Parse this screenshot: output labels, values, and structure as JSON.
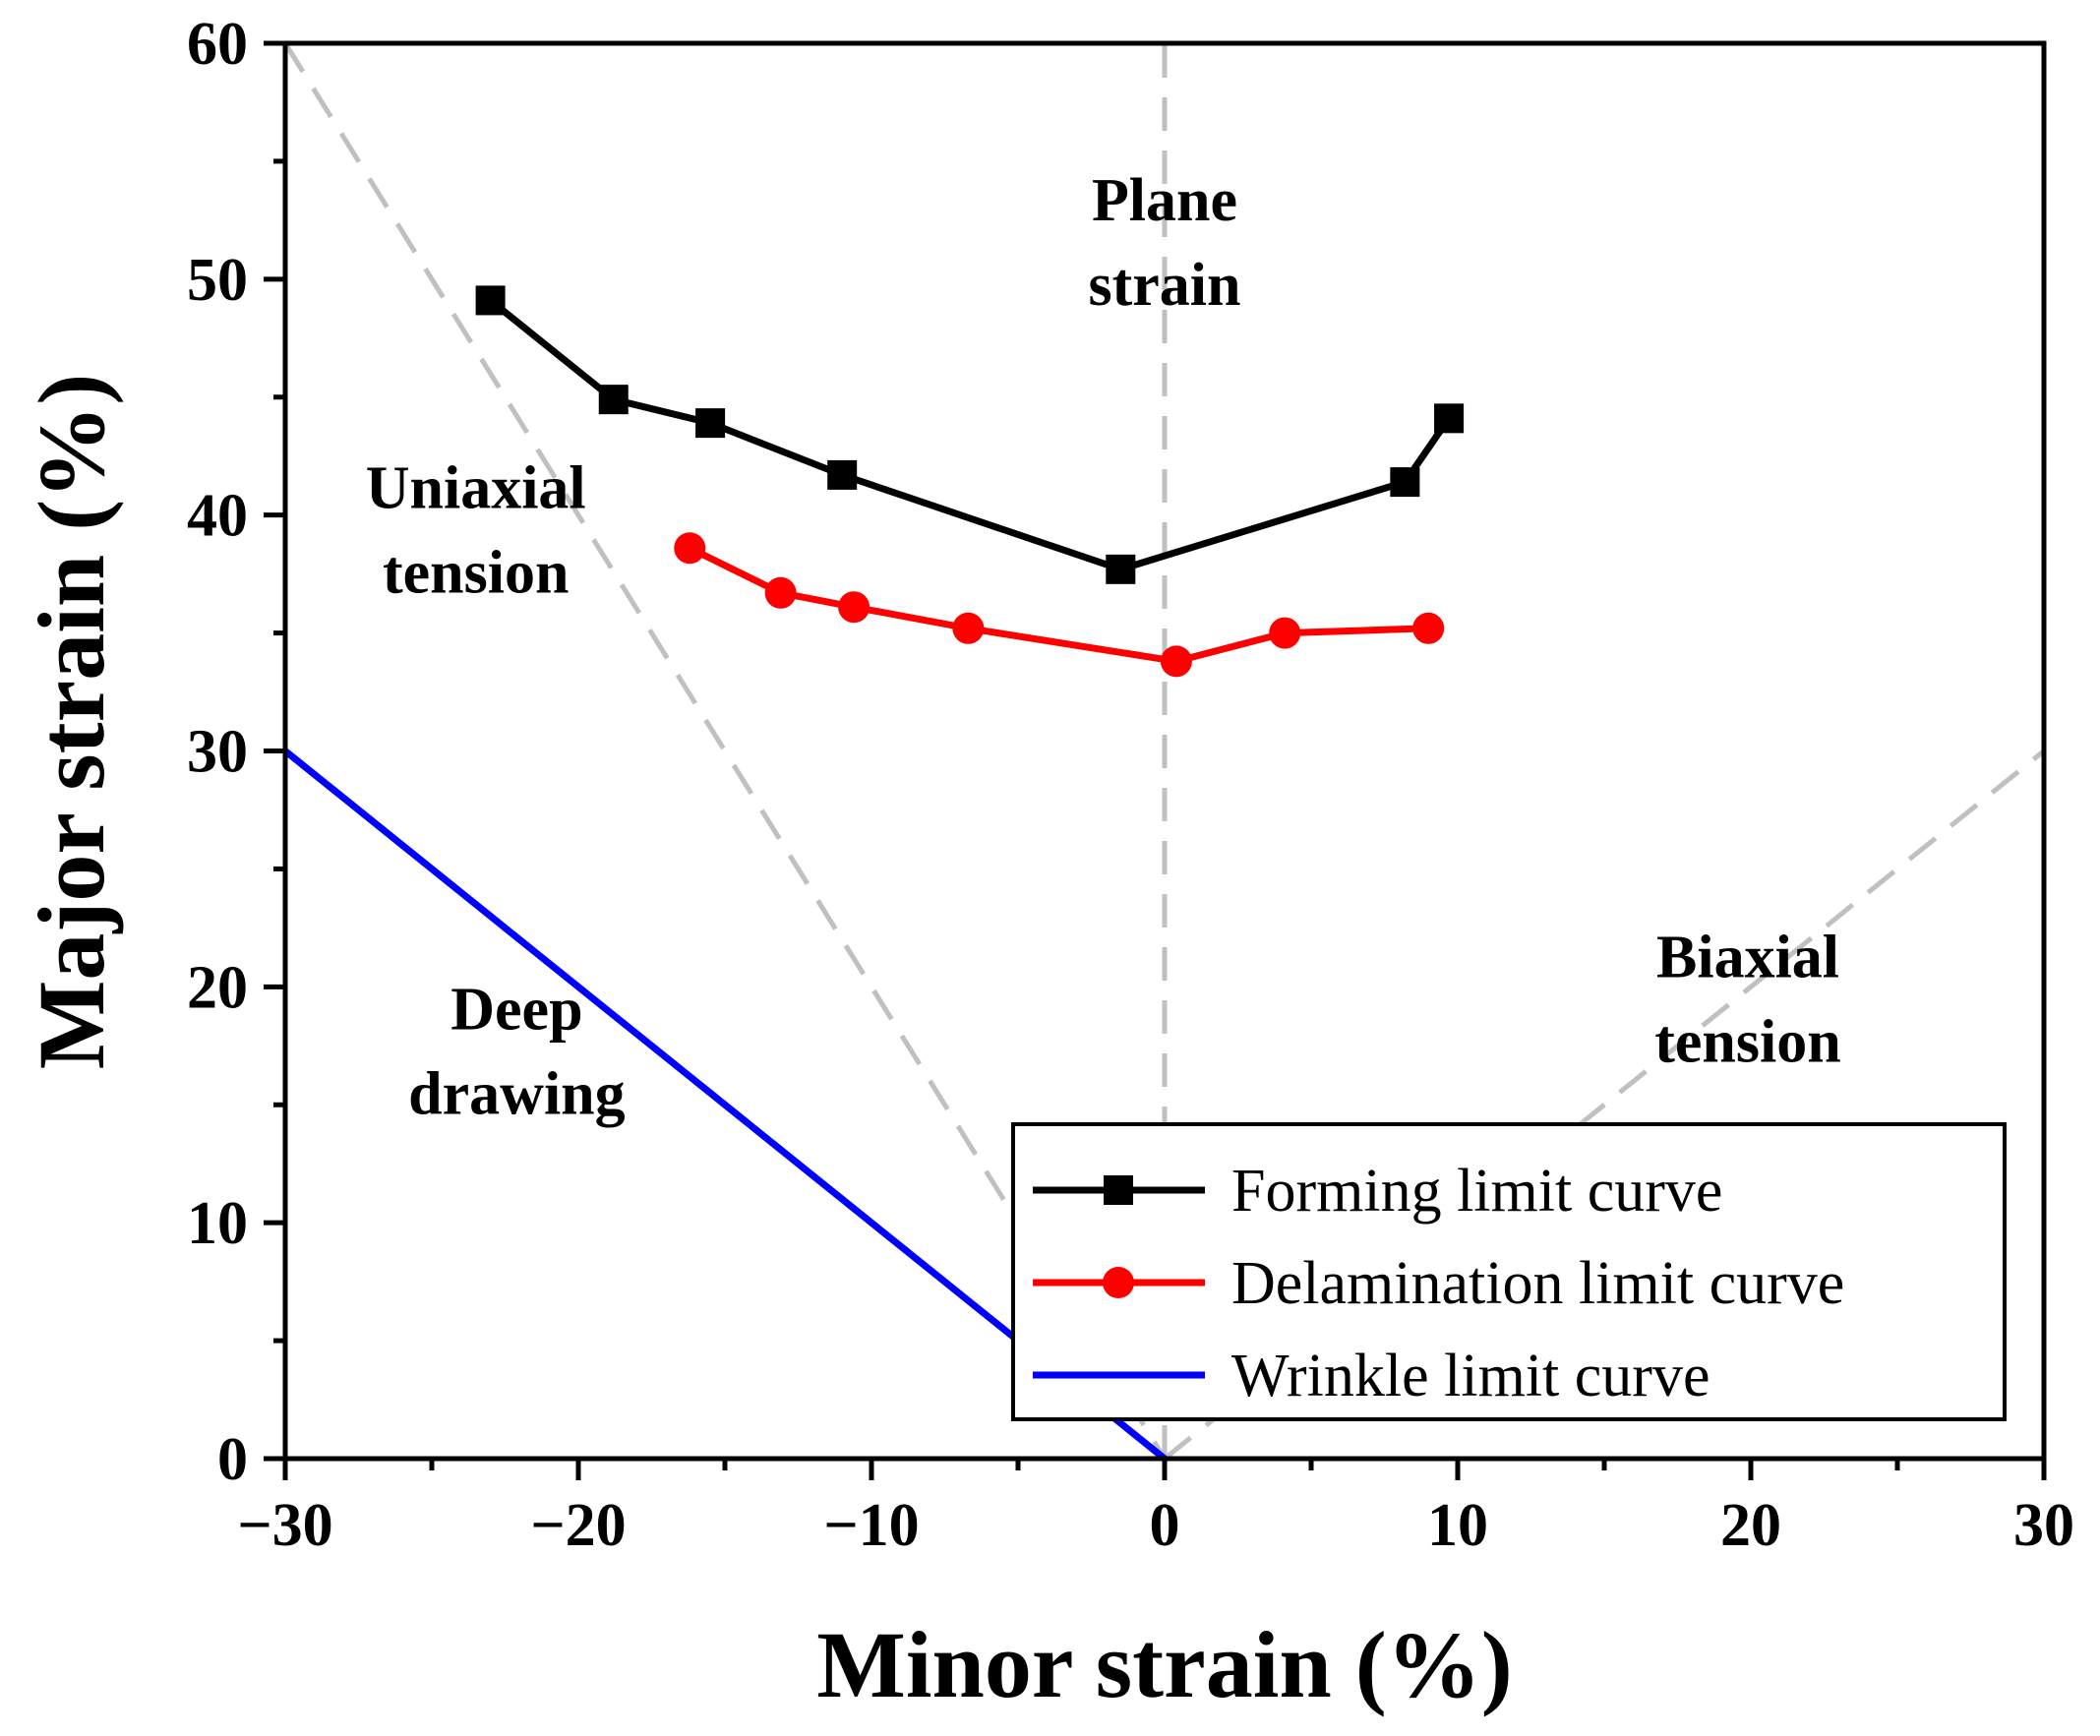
{
  "chart_data": {
    "type": "line",
    "xlabel": "Minor strain (%)",
    "ylabel": "Major strain (%)",
    "xlim": [
      -30,
      30
    ],
    "ylim": [
      0,
      60
    ],
    "xticks": [
      -30,
      -20,
      -10,
      0,
      10,
      20,
      30
    ],
    "xtick_labels": [
      "−30",
      "−20",
      "−10",
      "0",
      "10",
      "20",
      "30"
    ],
    "yticks": [
      0,
      10,
      20,
      30,
      40,
      50,
      60
    ],
    "ytick_labels": [
      "0",
      "10",
      "20",
      "30",
      "40",
      "50",
      "60"
    ],
    "grid": false,
    "legend_position": "bottom-right",
    "series": [
      {
        "name": "Forming limit curve",
        "color": "#000000",
        "marker": "square",
        "x": [
          -23,
          -18.8,
          -15.5,
          -11,
          -1.5,
          8.2,
          9.7
        ],
        "y": [
          49.1,
          44.9,
          43.9,
          41.7,
          37.7,
          41.4,
          44.1
        ]
      },
      {
        "name": "Delamination limit curve",
        "color": "#ff0000",
        "marker": "circle",
        "x": [
          -16.2,
          -13.1,
          -10.6,
          -6.7,
          0.4,
          4.1,
          9.0
        ],
        "y": [
          38.6,
          36.7,
          36.1,
          35.2,
          33.8,
          35.0,
          35.2
        ]
      },
      {
        "name": "Wrinkle limit curve",
        "color": "#0000ff",
        "marker": "none",
        "x": [
          -30,
          0
        ],
        "y": [
          30,
          0
        ]
      }
    ],
    "reference_lines": [
      {
        "name": "uniaxial-tension-line",
        "x": [
          -30,
          0
        ],
        "y": [
          60,
          0
        ],
        "color": "#c0c0c0",
        "style": "dashed"
      },
      {
        "name": "plane-strain-line",
        "x": [
          0,
          0
        ],
        "y": [
          0,
          60
        ],
        "color": "#c0c0c0",
        "style": "dashed"
      },
      {
        "name": "biaxial-tension-line",
        "x": [
          0,
          30
        ],
        "y": [
          0,
          30
        ],
        "color": "#c0c0c0",
        "style": "dashed"
      }
    ],
    "annotations": [
      {
        "name": "plane-strain",
        "lines": [
          "Plane",
          "strain"
        ],
        "x": 0,
        "y": 52.5
      },
      {
        "name": "uniaxial-tension",
        "lines": [
          "Uniaxial",
          "tension"
        ],
        "x": -23.5,
        "y": 40.3
      },
      {
        "name": "biaxial-tension",
        "lines": [
          "Biaxial",
          "tension"
        ],
        "x": 19.9,
        "y": 20.4
      },
      {
        "name": "deep-drawing",
        "lines": [
          "Deep",
          "drawing"
        ],
        "x": -22.1,
        "y": 18.2
      }
    ]
  }
}
